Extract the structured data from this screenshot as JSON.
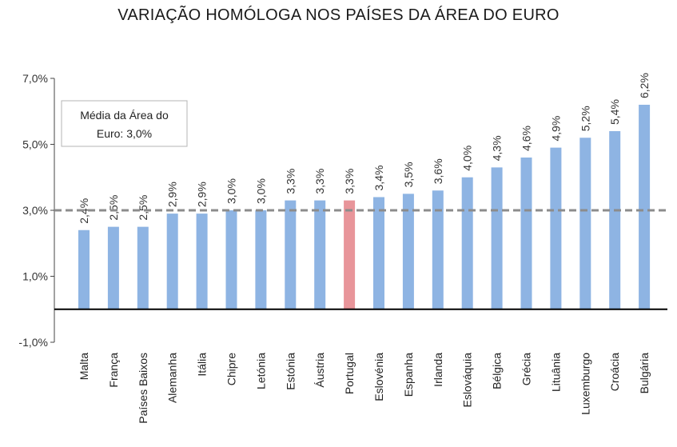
{
  "chart_data": {
    "type": "bar",
    "title": "VARIAÇÃO HOMÓLOGA NOS PAÍSES DA ÁREA DO EURO",
    "categories": [
      "Malta",
      "França",
      "Países Baixos",
      "Alemanha",
      "Itália",
      "Chipre",
      "Letónia",
      "Estónia",
      "Áustria",
      "Portugal",
      "Eslovénia",
      "Espanha",
      "Irlanda",
      "Eslováquia",
      "Bélgica",
      "Grécia",
      "Lituânia",
      "Luxemburgo",
      "Croácia",
      "Bulgária"
    ],
    "values": [
      2.4,
      2.5,
      2.5,
      2.9,
      2.9,
      3.0,
      3.0,
      3.3,
      3.3,
      3.3,
      3.4,
      3.5,
      3.6,
      4.0,
      4.3,
      4.6,
      4.9,
      5.2,
      5.4,
      6.2
    ],
    "value_labels": [
      "2,4%",
      "2,5%",
      "2,5%",
      "2,9%",
      "2,9%",
      "3,0%",
      "3,0%",
      "3,3%",
      "3,3%",
      "3,3%",
      "3,4%",
      "3,5%",
      "3,6%",
      "4,0%",
      "4,3%",
      "4,6%",
      "4,9%",
      "5,2%",
      "5,4%",
      "6,2%"
    ],
    "highlight_category": "Portugal",
    "colors": {
      "bar": "#8eb4e3",
      "highlight": "#e8959a",
      "reference_line": "#8c8c8c",
      "axis": "#000000"
    },
    "ylim": [
      -1.0,
      7.0
    ],
    "yticks": [
      -1.0,
      1.0,
      3.0,
      5.0,
      7.0
    ],
    "ytick_labels": [
      "-1,0%",
      "1,0%",
      "3,0%",
      "5,0%",
      "7,0%"
    ],
    "reference_line": {
      "value": 3.0,
      "style": "dashed",
      "label_line1": "Média da Área do",
      "label_line2": "Euro: 3,0%"
    },
    "grid": false,
    "legend": "none"
  }
}
